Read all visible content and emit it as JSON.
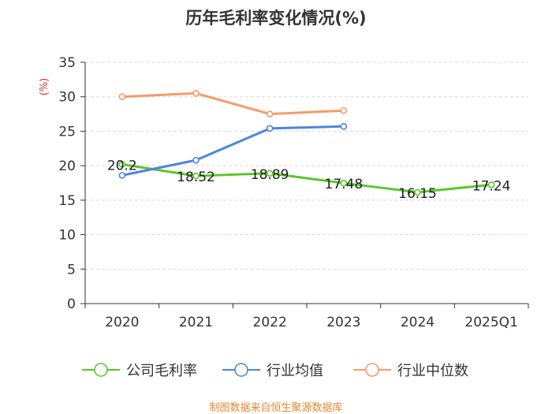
{
  "chart_data": {
    "type": "line",
    "title": "历年毛利率变化情况(%)",
    "ylabel": "(%)",
    "xlabel": "",
    "categories": [
      "2020",
      "2021",
      "2022",
      "2023",
      "2024",
      "2025Q1"
    ],
    "ylim": [
      0,
      35
    ],
    "yticks": [
      0,
      5,
      10,
      15,
      20,
      25,
      30,
      35
    ],
    "grid": true,
    "legend_position": "bottom",
    "series": [
      {
        "name": "公司毛利率",
        "color": "#5cc72b",
        "values": [
          20.2,
          18.52,
          18.89,
          17.48,
          16.15,
          17.24
        ],
        "labels": [
          "20.2",
          "18.52",
          "18.89",
          "17.48",
          "16.15",
          "17.24"
        ]
      },
      {
        "name": "行业均值",
        "color": "#4d85e0",
        "values": [
          18.6,
          20.8,
          25.4,
          25.7,
          null,
          null
        ]
      },
      {
        "name": "行业中位数",
        "color": "#f79a6b",
        "values": [
          30.0,
          30.5,
          27.5,
          28.0,
          null,
          null
        ]
      }
    ]
  },
  "footer": {
    "source": "制图数据来自恒生聚源数据库"
  }
}
